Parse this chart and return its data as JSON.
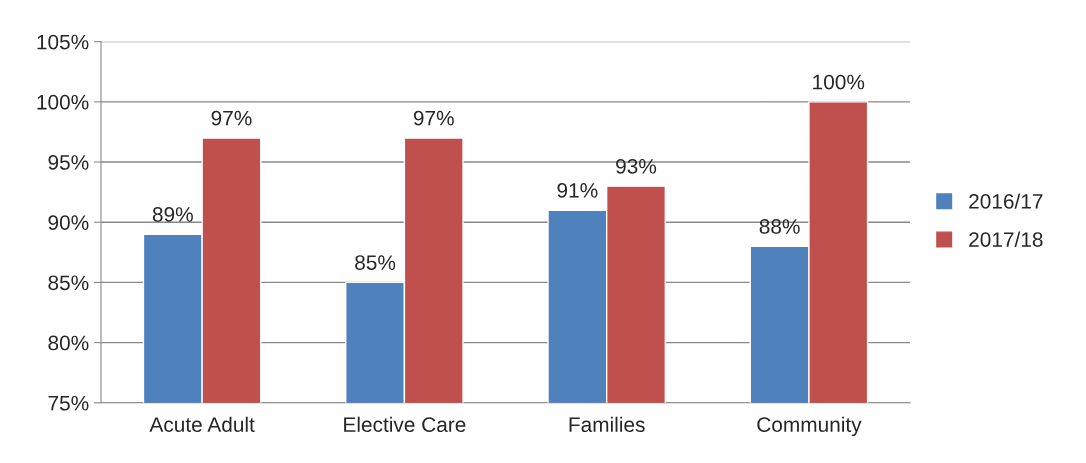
{
  "chart_data": {
    "type": "bar",
    "categories": [
      "Acute Adult",
      "Elective Care",
      "Families",
      "Community"
    ],
    "series": [
      {
        "name": "2016/17",
        "color": "#4f81bd",
        "values": [
          89,
          85,
          91,
          88
        ],
        "value_labels": [
          "89%",
          "85%",
          "91%",
          "88%"
        ]
      },
      {
        "name": "2017/18",
        "color": "#c0504d",
        "values": [
          97,
          97,
          93,
          100
        ],
        "value_labels": [
          "97%",
          "97%",
          "93%",
          "100%"
        ]
      }
    ],
    "ylim": [
      75,
      105
    ],
    "yticks": [
      {
        "value": 75,
        "label": "75%"
      },
      {
        "value": 80,
        "label": "80%"
      },
      {
        "value": 85,
        "label": "85%"
      },
      {
        "value": 90,
        "label": "90%"
      },
      {
        "value": 95,
        "label": "95%"
      },
      {
        "value": 100,
        "label": "100%"
      },
      {
        "value": 105,
        "label": "105%"
      }
    ],
    "grid": "y",
    "legend": "right"
  }
}
